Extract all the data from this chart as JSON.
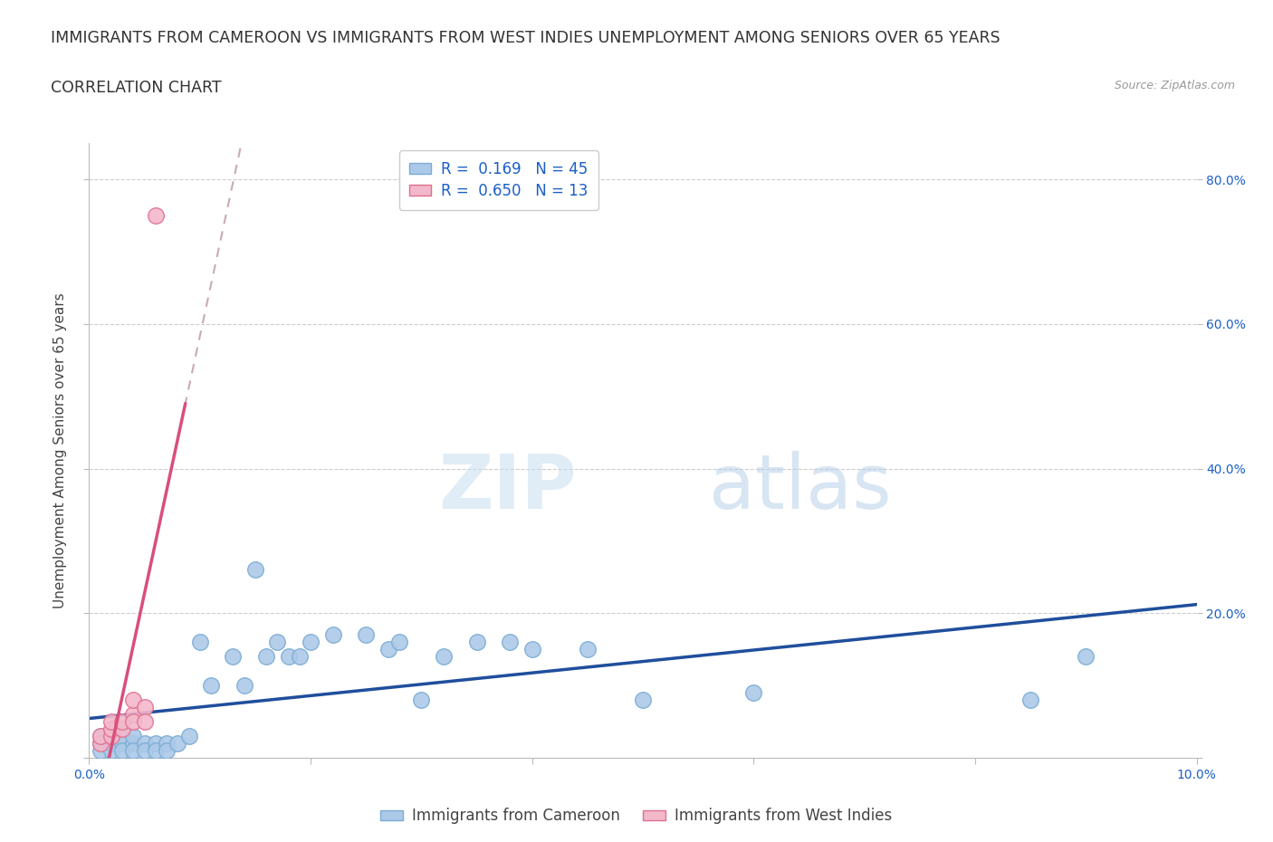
{
  "title_line1": "IMMIGRANTS FROM CAMEROON VS IMMIGRANTS FROM WEST INDIES UNEMPLOYMENT AMONG SENIORS OVER 65 YEARS",
  "title_line2": "CORRELATION CHART",
  "source_text": "Source: ZipAtlas.com",
  "ylabel": "Unemployment Among Seniors over 65 years",
  "watermark_zip": "ZIP",
  "watermark_atlas": "atlas",
  "xlim": [
    0.0,
    0.1
  ],
  "ylim": [
    0.0,
    0.85
  ],
  "cameroon_color": "#adc9e8",
  "cameroon_edge": "#7aadd4",
  "westindies_color": "#f2b8cc",
  "westindies_edge": "#e0708e",
  "trend_cameroon_color": "#1f4e9c",
  "trend_westindies_color": "#d94f7a",
  "trend_westindies_dashed_color": "#c8aab8",
  "legend_r_cameroon": "R =  0.169   N = 45",
  "legend_r_westindies": "R =  0.650   N = 13",
  "legend_label_cameroon": "Immigrants from Cameroon",
  "legend_label_westindies": "Immigrants from West Indies",
  "cameroon_x": [
    0.001,
    0.001,
    0.001,
    0.002,
    0.002,
    0.002,
    0.002,
    0.003,
    0.003,
    0.003,
    0.004,
    0.004,
    0.004,
    0.005,
    0.005,
    0.006,
    0.006,
    0.007,
    0.007,
    0.008,
    0.009,
    0.01,
    0.011,
    0.013,
    0.014,
    0.015,
    0.016,
    0.017,
    0.018,
    0.019,
    0.02,
    0.022,
    0.025,
    0.027,
    0.028,
    0.03,
    0.032,
    0.035,
    0.038,
    0.04,
    0.045,
    0.05,
    0.06,
    0.085,
    0.09
  ],
  "cameroon_y": [
    0.02,
    0.03,
    0.01,
    0.02,
    0.03,
    0.02,
    0.01,
    0.03,
    0.02,
    0.01,
    0.02,
    0.03,
    0.01,
    0.02,
    0.01,
    0.02,
    0.01,
    0.02,
    0.01,
    0.02,
    0.03,
    0.16,
    0.1,
    0.14,
    0.1,
    0.26,
    0.14,
    0.16,
    0.14,
    0.14,
    0.16,
    0.17,
    0.17,
    0.15,
    0.16,
    0.08,
    0.14,
    0.16,
    0.16,
    0.15,
    0.15,
    0.08,
    0.09,
    0.08,
    0.14
  ],
  "westindies_x": [
    0.001,
    0.001,
    0.002,
    0.002,
    0.002,
    0.003,
    0.003,
    0.004,
    0.004,
    0.004,
    0.005,
    0.005,
    0.006
  ],
  "westindies_y": [
    0.02,
    0.03,
    0.03,
    0.04,
    0.05,
    0.04,
    0.05,
    0.06,
    0.05,
    0.08,
    0.07,
    0.05,
    0.75
  ],
  "grid_color": "#cccccc",
  "grid_linestyle": "--",
  "background_color": "#ffffff",
  "title_fontsize": 12.5,
  "axis_label_fontsize": 11,
  "tick_fontsize": 10,
  "legend_fontsize": 12,
  "r_color": "#1a5fc8",
  "axis_color": "#1a5fc8"
}
